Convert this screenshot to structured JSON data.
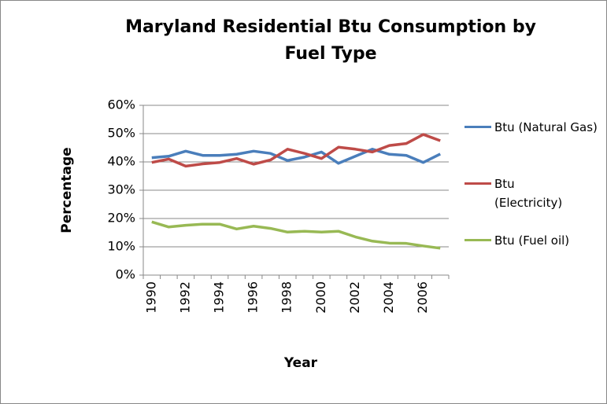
{
  "chart_data": {
    "type": "line",
    "title": "Maryland Residential Btu Consumption by Fuel Type",
    "x_label": "Year",
    "y_label": "Percentage",
    "categories": [
      "1990",
      null,
      "1992",
      null,
      "1994",
      null,
      "1996",
      null,
      "1998",
      null,
      "2000",
      null,
      "2002",
      null,
      "2004",
      null,
      "2006",
      null
    ],
    "series": [
      {
        "name": "Btu (Natural Gas)",
        "color": "#4a7ebb",
        "values": [
          41.5,
          42,
          43.8,
          42.3,
          42.3,
          42.7,
          43.8,
          43,
          40.5,
          41.7,
          43.5,
          39.5,
          42,
          44.5,
          42.7,
          42.3,
          39.8,
          42.8
        ]
      },
      {
        "name": "Btu (Electricity)",
        "color": "#be4b48",
        "values": [
          39.8,
          41,
          38.5,
          39.3,
          39.8,
          41.2,
          39.2,
          40.7,
          44.5,
          43,
          41.2,
          45.2,
          44.5,
          43.5,
          45.8,
          46.5,
          49.7,
          47.5
        ]
      },
      {
        "name": "Btu (Fuel oil)",
        "color": "#98b954",
        "values": [
          18.8,
          17,
          17.6,
          18,
          18,
          16.3,
          17.3,
          16.5,
          15.2,
          15.5,
          15.2,
          15.5,
          13.5,
          12,
          11.3,
          11.2,
          10.3,
          9.5
        ]
      }
    ],
    "ylim": [
      0,
      60
    ],
    "yticks": [
      {
        "value": 0,
        "label": "0%"
      },
      {
        "value": 10,
        "label": "10%"
      },
      {
        "value": 20,
        "label": "20%"
      },
      {
        "value": 30,
        "label": "30%"
      },
      {
        "value": 40,
        "label": "40%"
      },
      {
        "value": 50,
        "label": "50%"
      },
      {
        "value": 60,
        "label": "60%"
      }
    ],
    "grid": true,
    "legend": "right"
  }
}
